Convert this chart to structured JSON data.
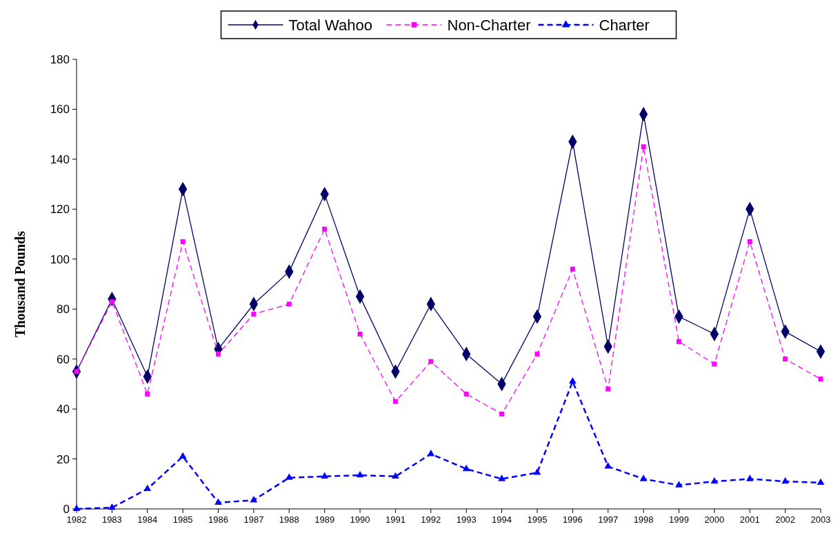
{
  "chart_data": {
    "type": "line",
    "ylabel": "Thousand Pounds",
    "categories": [
      "1982",
      "1983",
      "1984",
      "1985",
      "1986",
      "1987",
      "1988",
      "1989",
      "1990",
      "1991",
      "1992",
      "1993",
      "1994",
      "1995",
      "1996",
      "1997",
      "1998",
      "1999",
      "2000",
      "2001",
      "2002",
      "2003"
    ],
    "series": [
      {
        "name": "Total Wahoo",
        "color": "#000066",
        "marker": "diamond",
        "line_style": "solid",
        "values": [
          55,
          84,
          53,
          128,
          64,
          82,
          95,
          126,
          85,
          55,
          82,
          62,
          50,
          77,
          147,
          65,
          158,
          77,
          70,
          120,
          71,
          63
        ]
      },
      {
        "name": "Non-Charter",
        "color": "#ff00ff",
        "marker": "square",
        "line_style": "dashed",
        "values": [
          55,
          83,
          46,
          107,
          62,
          78,
          82,
          112,
          70,
          43,
          59,
          46,
          38,
          62,
          96,
          48,
          145,
          67,
          58,
          107,
          60,
          52
        ]
      },
      {
        "name": "Charter",
        "color": "#0000ff",
        "marker": "triangle",
        "line_style": "dashed",
        "values": [
          0,
          0.5,
          8,
          21,
          2.5,
          3.5,
          12.5,
          13,
          13.5,
          13,
          22,
          16,
          12,
          14.5,
          51,
          17,
          12,
          9.5,
          11,
          12,
          11,
          10.5
        ]
      }
    ],
    "ylim": [
      0,
      180
    ],
    "yticks": [
      0,
      20,
      40,
      60,
      80,
      100,
      120,
      140,
      160,
      180
    ],
    "grid": false,
    "legend": "top"
  }
}
